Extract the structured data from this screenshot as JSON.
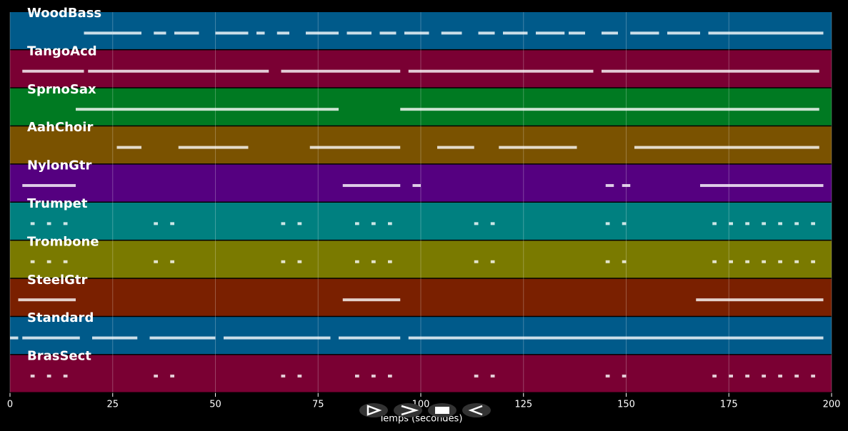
{
  "chart_data": {
    "type": "piano-roll",
    "x_label": "Temps (secondes)",
    "xlim": [
      0,
      200
    ],
    "xticks": [
      0,
      25,
      50,
      75,
      100,
      125,
      150,
      175,
      200
    ],
    "grid": true,
    "tracks": [
      {
        "name": "WoodBass",
        "color": "#005a8a",
        "notes": [
          [
            18,
            25
          ],
          [
            25,
            32
          ],
          [
            35,
            38
          ],
          [
            40,
            46
          ],
          [
            50,
            58
          ],
          [
            60,
            62
          ],
          [
            65,
            68
          ],
          [
            72,
            80
          ],
          [
            82,
            88
          ],
          [
            90,
            94
          ],
          [
            96,
            102
          ],
          [
            105,
            110
          ],
          [
            114,
            118
          ],
          [
            120,
            126
          ],
          [
            128,
            135
          ],
          [
            136,
            140
          ],
          [
            144,
            148
          ],
          [
            151,
            158
          ],
          [
            160,
            168
          ],
          [
            170,
            198
          ]
        ]
      },
      {
        "name": "TangoAcd",
        "color": "#7a0033",
        "notes": [
          [
            3,
            18
          ],
          [
            19,
            63
          ],
          [
            66,
            95
          ],
          [
            97,
            142
          ],
          [
            144,
            197
          ]
        ]
      },
      {
        "name": "SprnoSax",
        "color": "#007a22",
        "notes": [
          [
            16,
            80
          ],
          [
            95,
            197
          ]
        ]
      },
      {
        "name": "AahChoir",
        "color": "#7a5200",
        "notes": [
          [
            26,
            32
          ],
          [
            41,
            58
          ],
          [
            73,
            95
          ],
          [
            104,
            113
          ],
          [
            119,
            138
          ],
          [
            152,
            197
          ]
        ]
      },
      {
        "name": "NylonGtr",
        "color": "#550080",
        "notes": [
          [
            3,
            16
          ],
          [
            81,
            95
          ],
          [
            98,
            100
          ],
          [
            145,
            147
          ],
          [
            149,
            151
          ],
          [
            168,
            198
          ]
        ]
      },
      {
        "name": "Trumpet",
        "color": "#008080",
        "notes": [
          [
            5,
            6
          ],
          [
            9,
            10
          ],
          [
            13,
            14
          ],
          [
            35,
            36
          ],
          [
            39,
            40
          ],
          [
            66,
            67
          ],
          [
            70,
            71
          ],
          [
            84,
            85
          ],
          [
            88,
            89
          ],
          [
            92,
            93
          ],
          [
            113,
            114
          ],
          [
            117,
            118
          ],
          [
            145,
            146
          ],
          [
            149,
            150
          ],
          [
            171,
            172
          ],
          [
            175,
            176
          ],
          [
            179,
            180
          ],
          [
            183,
            184
          ],
          [
            187,
            188
          ],
          [
            191,
            192
          ],
          [
            195,
            196
          ]
        ]
      },
      {
        "name": "Trombone",
        "color": "#7a7a00",
        "notes": [
          [
            5,
            6
          ],
          [
            9,
            10
          ],
          [
            13,
            14
          ],
          [
            35,
            36
          ],
          [
            39,
            40
          ],
          [
            66,
            67
          ],
          [
            70,
            71
          ],
          [
            84,
            85
          ],
          [
            88,
            89
          ],
          [
            92,
            93
          ],
          [
            113,
            114
          ],
          [
            117,
            118
          ],
          [
            145,
            146
          ],
          [
            149,
            150
          ],
          [
            171,
            172
          ],
          [
            175,
            176
          ],
          [
            179,
            180
          ],
          [
            183,
            184
          ],
          [
            187,
            188
          ],
          [
            191,
            192
          ],
          [
            195,
            196
          ]
        ]
      },
      {
        "name": "SteelGtr",
        "color": "#7a2000",
        "notes": [
          [
            2,
            16
          ],
          [
            81,
            95
          ],
          [
            167,
            198
          ]
        ]
      },
      {
        "name": "Standard",
        "color": "#005a8a",
        "notes": [
          [
            0,
            2
          ],
          [
            3,
            17
          ],
          [
            20,
            31
          ],
          [
            34,
            50
          ],
          [
            52,
            78
          ],
          [
            80,
            95
          ],
          [
            97,
            198
          ]
        ]
      },
      {
        "name": "BrasSect",
        "color": "#7a0033",
        "notes": [
          [
            5,
            6
          ],
          [
            9,
            10
          ],
          [
            13,
            14
          ],
          [
            35,
            36
          ],
          [
            39,
            40
          ],
          [
            66,
            67
          ],
          [
            70,
            71
          ],
          [
            84,
            85
          ],
          [
            88,
            89
          ],
          [
            92,
            93
          ],
          [
            113,
            114
          ],
          [
            117,
            118
          ],
          [
            145,
            146
          ],
          [
            149,
            150
          ],
          [
            171,
            172
          ],
          [
            175,
            176
          ],
          [
            179,
            180
          ],
          [
            183,
            184
          ],
          [
            187,
            188
          ],
          [
            191,
            192
          ],
          [
            195,
            196
          ]
        ]
      }
    ]
  }
}
